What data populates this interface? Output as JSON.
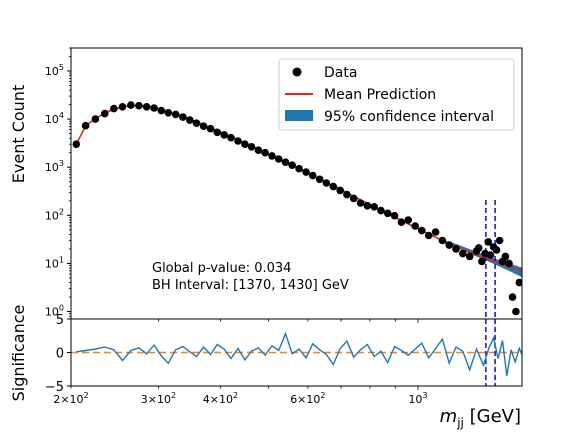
{
  "chart_data": [
    {
      "type": "scatter",
      "panel": "main",
      "xscale": "log",
      "yscale": "log",
      "xlim": [
        200,
        1620
      ],
      "ylim": [
        0.7,
        300000
      ],
      "ylabel": "Event Count",
      "yticks": [
        {
          "value": 1,
          "base": "10",
          "exp": "0"
        },
        {
          "value": 10,
          "base": "10",
          "exp": "1"
        },
        {
          "value": 100,
          "base": "10",
          "exp": "2"
        },
        {
          "value": 1000,
          "base": "10",
          "exp": "3"
        },
        {
          "value": 10000,
          "base": "10",
          "exp": "4"
        },
        {
          "value": 100000,
          "base": "10",
          "exp": "5"
        }
      ],
      "legend": {
        "placement": "top-right",
        "entries": [
          "Data",
          "Mean Prediction",
          "95% confidence interval"
        ]
      },
      "annotations": [
        "Global p-value: 0.034",
        "BH Interval: [1370, 1430] GeV"
      ],
      "bh_interval": [
        1370,
        1430
      ],
      "colors": {
        "data": "#000000",
        "prediction": "#e8231c",
        "band": "#1f77b4",
        "interval_lines": "#1a1ad9"
      },
      "series": [
        {
          "name": "Data",
          "kind": "points",
          "x": [
            205,
            214,
            224,
            234,
            244,
            254,
            264,
            274,
            284,
            294,
            304,
            314,
            325,
            336,
            347,
            358,
            370,
            382,
            394,
            407,
            420,
            434,
            448,
            462,
            477,
            492,
            508,
            524,
            541,
            558,
            576,
            595,
            614,
            634,
            654,
            675,
            697,
            719,
            742,
            766,
            791,
            816,
            842,
            869,
            897,
            926,
            956,
            987,
            1018,
            1051,
            1085,
            1120,
            1156,
            1193,
            1231,
            1271,
            1312,
            1325,
            1345,
            1365,
            1385,
            1400,
            1420,
            1440,
            1460,
            1480,
            1500,
            1525,
            1550,
            1575,
            1600
          ],
          "y": [
            3000,
            7300,
            10000,
            13000,
            16500,
            18000,
            19500,
            19000,
            18000,
            17000,
            15000,
            13500,
            12500,
            11000,
            9500,
            8200,
            7100,
            6300,
            5300,
            4700,
            4100,
            3500,
            3000,
            2650,
            2250,
            2000,
            1720,
            1480,
            1270,
            1100,
            930,
            790,
            670,
            560,
            470,
            395,
            330,
            270,
            225,
            180,
            158,
            150,
            125,
            110,
            98,
            72,
            80,
            60,
            48,
            38,
            45,
            30,
            24,
            20,
            16,
            14,
            18,
            21,
            11,
            16,
            28,
            15,
            22,
            19,
            30,
            11,
            14,
            10,
            2,
            1,
            4
          ]
        },
        {
          "name": "Mean Prediction",
          "kind": "line",
          "x": [
            205,
            214,
            224,
            234,
            244,
            254,
            264,
            274,
            284,
            294,
            304,
            314,
            325,
            336,
            347,
            358,
            370,
            382,
            394,
            407,
            420,
            434,
            448,
            462,
            477,
            492,
            508,
            524,
            541,
            558,
            576,
            595,
            614,
            634,
            654,
            675,
            697,
            719,
            742,
            766,
            791,
            816,
            842,
            869,
            897,
            926,
            956,
            987,
            1018,
            1051,
            1085,
            1120,
            1156,
            1193,
            1231,
            1271,
            1312,
            1355,
            1400,
            1445,
            1490,
            1540,
            1590,
            1620
          ],
          "y": [
            3000,
            7200,
            10300,
            13300,
            16000,
            18000,
            19000,
            19000,
            18300,
            17200,
            15800,
            14300,
            12800,
            11400,
            10000,
            8700,
            7600,
            6600,
            5700,
            4950,
            4300,
            3700,
            3200,
            2750,
            2350,
            2000,
            1720,
            1470,
            1260,
            1080,
            920,
            780,
            665,
            565,
            480,
            408,
            345,
            293,
            248,
            210,
            178,
            150,
            127,
            108,
            92,
            78,
            66,
            56,
            48,
            41,
            35,
            30,
            26,
            22.5,
            19.5,
            17,
            15,
            13.2,
            11.7,
            10.4,
            9.3,
            8.2,
            7.3,
            6.8
          ]
        },
        {
          "name": "95% confidence interval",
          "kind": "band",
          "x": [
            1100,
            1200,
            1300,
            1400,
            1500,
            1620
          ],
          "low": [
            29,
            21,
            14.5,
            10.5,
            7.6,
            5.2
          ],
          "high": [
            33,
            25,
            18,
            13.5,
            10.7,
            8.2
          ]
        }
      ]
    },
    {
      "type": "line",
      "panel": "residual",
      "xscale": "log",
      "xlim": [
        200,
        1620
      ],
      "ylim": [
        -5,
        5
      ],
      "ylabel": "Significance",
      "xlabel_symbol": "m",
      "xlabel_subscript": "jj",
      "xlabel_unit": " [GeV]",
      "yticks": [
        "5",
        "0",
        "−5"
      ],
      "xticks": [
        {
          "value": 200,
          "mantissa": "2×10",
          "exp": "2"
        },
        {
          "value": 300,
          "mantissa": "3×10",
          "exp": "2"
        },
        {
          "value": 400,
          "mantissa": "4×10",
          "exp": "2"
        },
        {
          "value": 600,
          "mantissa": "6×10",
          "exp": "2"
        },
        {
          "value": 1000,
          "mantissa": "10",
          "exp": "3"
        }
      ],
      "reference_line": 0,
      "series": [
        {
          "name": "Significance",
          "x": [
            205,
            214,
            224,
            234,
            244,
            254,
            264,
            274,
            284,
            294,
            304,
            314,
            325,
            336,
            347,
            358,
            370,
            382,
            394,
            407,
            420,
            434,
            448,
            462,
            477,
            492,
            508,
            524,
            541,
            558,
            576,
            595,
            614,
            634,
            654,
            675,
            697,
            719,
            742,
            766,
            791,
            816,
            842,
            869,
            897,
            926,
            956,
            987,
            1018,
            1051,
            1085,
            1120,
            1156,
            1193,
            1231,
            1271,
            1312,
            1355,
            1390,
            1420,
            1450,
            1480,
            1510,
            1540,
            1570,
            1600,
            1620
          ],
          "y": [
            0.1,
            0.3,
            0.5,
            0.8,
            0.4,
            -1.2,
            0.3,
            0.7,
            -0.2,
            1.1,
            -0.5,
            -1.6,
            0.4,
            0.9,
            0.1,
            -0.6,
            0.8,
            -0.3,
            1.2,
            0.5,
            -0.9,
            0.6,
            -1.1,
            0.2,
            0.7,
            -0.4,
            1.0,
            0.3,
            2.8,
            -0.2,
            0.5,
            -0.8,
            1.3,
            0.4,
            -0.3,
            -1.8,
            0.6,
            1.7,
            -0.7,
            0.4,
            1.2,
            -0.6,
            0.2,
            -1.5,
            0.9,
            0.3,
            -0.4,
            0.5,
            1.4,
            -0.8,
            0.6,
            2.0,
            -1.6,
            0.8,
            0.2,
            -2.6,
            0.5,
            -1.9,
            0.7,
            2.2,
            -0.9,
            1.8,
            -3.5,
            0.4,
            -1.4,
            0.6,
            -0.3
          ]
        }
      ]
    }
  ]
}
